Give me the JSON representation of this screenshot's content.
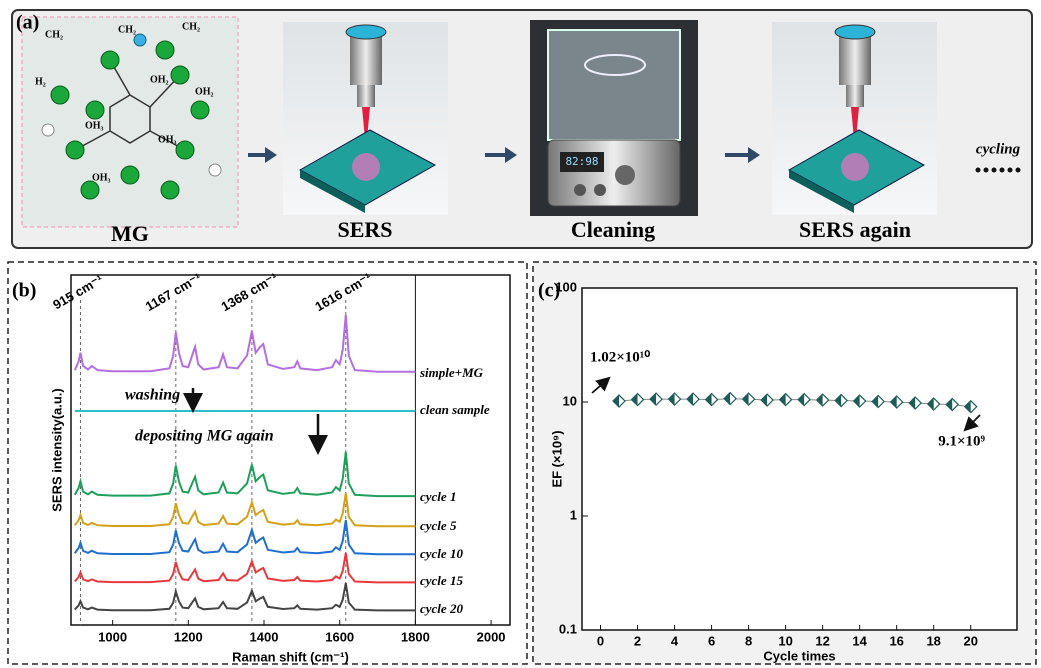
{
  "panel_a": {
    "label": "(a)",
    "steps": [
      "MG",
      "SERS",
      "Cleaning",
      "SERS again"
    ],
    "cycling": "cycling",
    "display": "82:98",
    "molecule_labels": [
      "CH₂",
      "CH₂",
      "CH₂",
      "H₂",
      "OH₂",
      "OH₂",
      "OH₃",
      "OH₃",
      "OH₃"
    ]
  },
  "chart_data": [
    {
      "type": "spectra",
      "panel_label": "(b)",
      "xlabel": "Raman shift (cm⁻¹)",
      "ylabel": "SERS intensity(a.u.)",
      "xlim": [
        890,
        2050
      ],
      "xticks": [
        1000,
        1200,
        1400,
        1600,
        1800,
        2000
      ],
      "x": [
        900,
        910,
        915,
        922,
        935,
        945,
        960,
        1000,
        1100,
        1150,
        1160,
        1167,
        1175,
        1185,
        1200,
        1210,
        1218,
        1226,
        1240,
        1280,
        1292,
        1302,
        1330,
        1355,
        1368,
        1378,
        1390,
        1398,
        1410,
        1450,
        1480,
        1488,
        1496,
        1540,
        1580,
        1590,
        1600,
        1608,
        1616,
        1624,
        1640,
        1700,
        1800
      ],
      "peaks": [
        {
          "value": 915,
          "label": "915 cm⁻¹"
        },
        {
          "value": 1167,
          "label": "1167 cm⁻¹"
        },
        {
          "value": 1368,
          "label": "1368 cm⁻¹"
        },
        {
          "value": 1616,
          "label": "1616 cm⁻¹"
        }
      ],
      "annotations": [
        "washing",
        "depositing MG again"
      ],
      "series": [
        {
          "name": "simple+MG",
          "color": "#b46ee0",
          "values": [
            0.05,
            0.2,
            0.35,
            0.12,
            0.06,
            0.12,
            0.05,
            0.03,
            0.03,
            0.08,
            0.3,
            0.7,
            0.35,
            0.12,
            0.1,
            0.3,
            0.45,
            0.15,
            0.06,
            0.1,
            0.32,
            0.1,
            0.08,
            0.3,
            0.72,
            0.35,
            0.45,
            0.5,
            0.15,
            0.07,
            0.1,
            0.2,
            0.08,
            0.05,
            0.1,
            0.22,
            0.15,
            0.4,
            1.0,
            0.3,
            0.05,
            0.02,
            0.02
          ]
        },
        {
          "name": "clean sample",
          "color": "#2bc0c8",
          "values": [
            0,
            0,
            0,
            0,
            0,
            0,
            0,
            0,
            0,
            0,
            0,
            0,
            0,
            0,
            0,
            0,
            0,
            0,
            0,
            0,
            0,
            0,
            0,
            0,
            0,
            0,
            0,
            0,
            0,
            0,
            0,
            0,
            0,
            0,
            0,
            0,
            0,
            0,
            0,
            0,
            0,
            0,
            0
          ]
        },
        {
          "name": "cycle 1",
          "color": "#1ea05a",
          "values": [
            0.05,
            0.2,
            0.35,
            0.12,
            0.06,
            0.12,
            0.05,
            0.03,
            0.03,
            0.08,
            0.3,
            0.7,
            0.35,
            0.12,
            0.1,
            0.3,
            0.45,
            0.15,
            0.06,
            0.1,
            0.32,
            0.1,
            0.08,
            0.3,
            0.72,
            0.35,
            0.45,
            0.5,
            0.15,
            0.07,
            0.1,
            0.2,
            0.08,
            0.05,
            0.1,
            0.22,
            0.15,
            0.4,
            1.0,
            0.3,
            0.05,
            0.02,
            0.02
          ]
        },
        {
          "name": "cycle 5",
          "color": "#d4a017",
          "values": [
            0.05,
            0.2,
            0.35,
            0.12,
            0.06,
            0.12,
            0.05,
            0.03,
            0.03,
            0.08,
            0.3,
            0.7,
            0.35,
            0.12,
            0.1,
            0.3,
            0.45,
            0.15,
            0.06,
            0.1,
            0.32,
            0.1,
            0.08,
            0.3,
            0.72,
            0.35,
            0.45,
            0.5,
            0.15,
            0.07,
            0.1,
            0.2,
            0.08,
            0.05,
            0.1,
            0.22,
            0.15,
            0.4,
            1.0,
            0.3,
            0.05,
            0.02,
            0.02
          ]
        },
        {
          "name": "cycle 10",
          "color": "#1f6fd0",
          "values": [
            0.05,
            0.2,
            0.35,
            0.12,
            0.06,
            0.12,
            0.05,
            0.03,
            0.03,
            0.08,
            0.3,
            0.7,
            0.35,
            0.12,
            0.1,
            0.3,
            0.45,
            0.15,
            0.06,
            0.1,
            0.32,
            0.1,
            0.08,
            0.3,
            0.72,
            0.35,
            0.45,
            0.5,
            0.15,
            0.07,
            0.1,
            0.2,
            0.08,
            0.05,
            0.1,
            0.22,
            0.15,
            0.4,
            1.0,
            0.3,
            0.05,
            0.02,
            0.02
          ]
        },
        {
          "name": "cycle 15",
          "color": "#e8383d",
          "values": [
            0.05,
            0.2,
            0.35,
            0.12,
            0.06,
            0.12,
            0.05,
            0.03,
            0.03,
            0.08,
            0.3,
            0.7,
            0.35,
            0.12,
            0.1,
            0.3,
            0.45,
            0.15,
            0.06,
            0.1,
            0.32,
            0.1,
            0.08,
            0.3,
            0.72,
            0.35,
            0.45,
            0.5,
            0.15,
            0.07,
            0.1,
            0.2,
            0.08,
            0.05,
            0.1,
            0.22,
            0.15,
            0.4,
            1.0,
            0.3,
            0.05,
            0.02,
            0.02
          ]
        },
        {
          "name": "cycle 20",
          "color": "#444444",
          "values": [
            0.05,
            0.2,
            0.35,
            0.12,
            0.06,
            0.12,
            0.05,
            0.03,
            0.03,
            0.08,
            0.3,
            0.7,
            0.35,
            0.12,
            0.1,
            0.3,
            0.45,
            0.15,
            0.06,
            0.1,
            0.32,
            0.1,
            0.08,
            0.3,
            0.72,
            0.35,
            0.45,
            0.5,
            0.15,
            0.07,
            0.1,
            0.2,
            0.08,
            0.05,
            0.1,
            0.22,
            0.15,
            0.4,
            1.0,
            0.3,
            0.05,
            0.02,
            0.02
          ]
        }
      ]
    },
    {
      "type": "line",
      "panel_label": "(c)",
      "xlabel": "Cycle times",
      "ylabel": "EF (×10⁹)",
      "log_y": true,
      "xlim": [
        -1,
        22.5
      ],
      "ylim": [
        0.1,
        100
      ],
      "xticks": [
        0,
        2,
        4,
        6,
        8,
        10,
        12,
        14,
        16,
        18,
        20
      ],
      "yticks": [
        0.1,
        1,
        10,
        100
      ],
      "x": [
        1,
        2,
        3,
        4,
        5,
        6,
        7,
        8,
        9,
        10,
        11,
        12,
        13,
        14,
        15,
        16,
        17,
        18,
        19,
        20
      ],
      "annotations": [
        "1.02×10¹⁰",
        "9.1×10⁹"
      ],
      "series": [
        {
          "color": "#1d5c57",
          "values": [
            10.2,
            10.5,
            10.6,
            10.6,
            10.6,
            10.5,
            10.7,
            10.6,
            10.4,
            10.5,
            10.5,
            10.4,
            10.3,
            10.2,
            10.1,
            10.0,
            9.8,
            9.6,
            9.5,
            9.1
          ]
        }
      ]
    }
  ]
}
